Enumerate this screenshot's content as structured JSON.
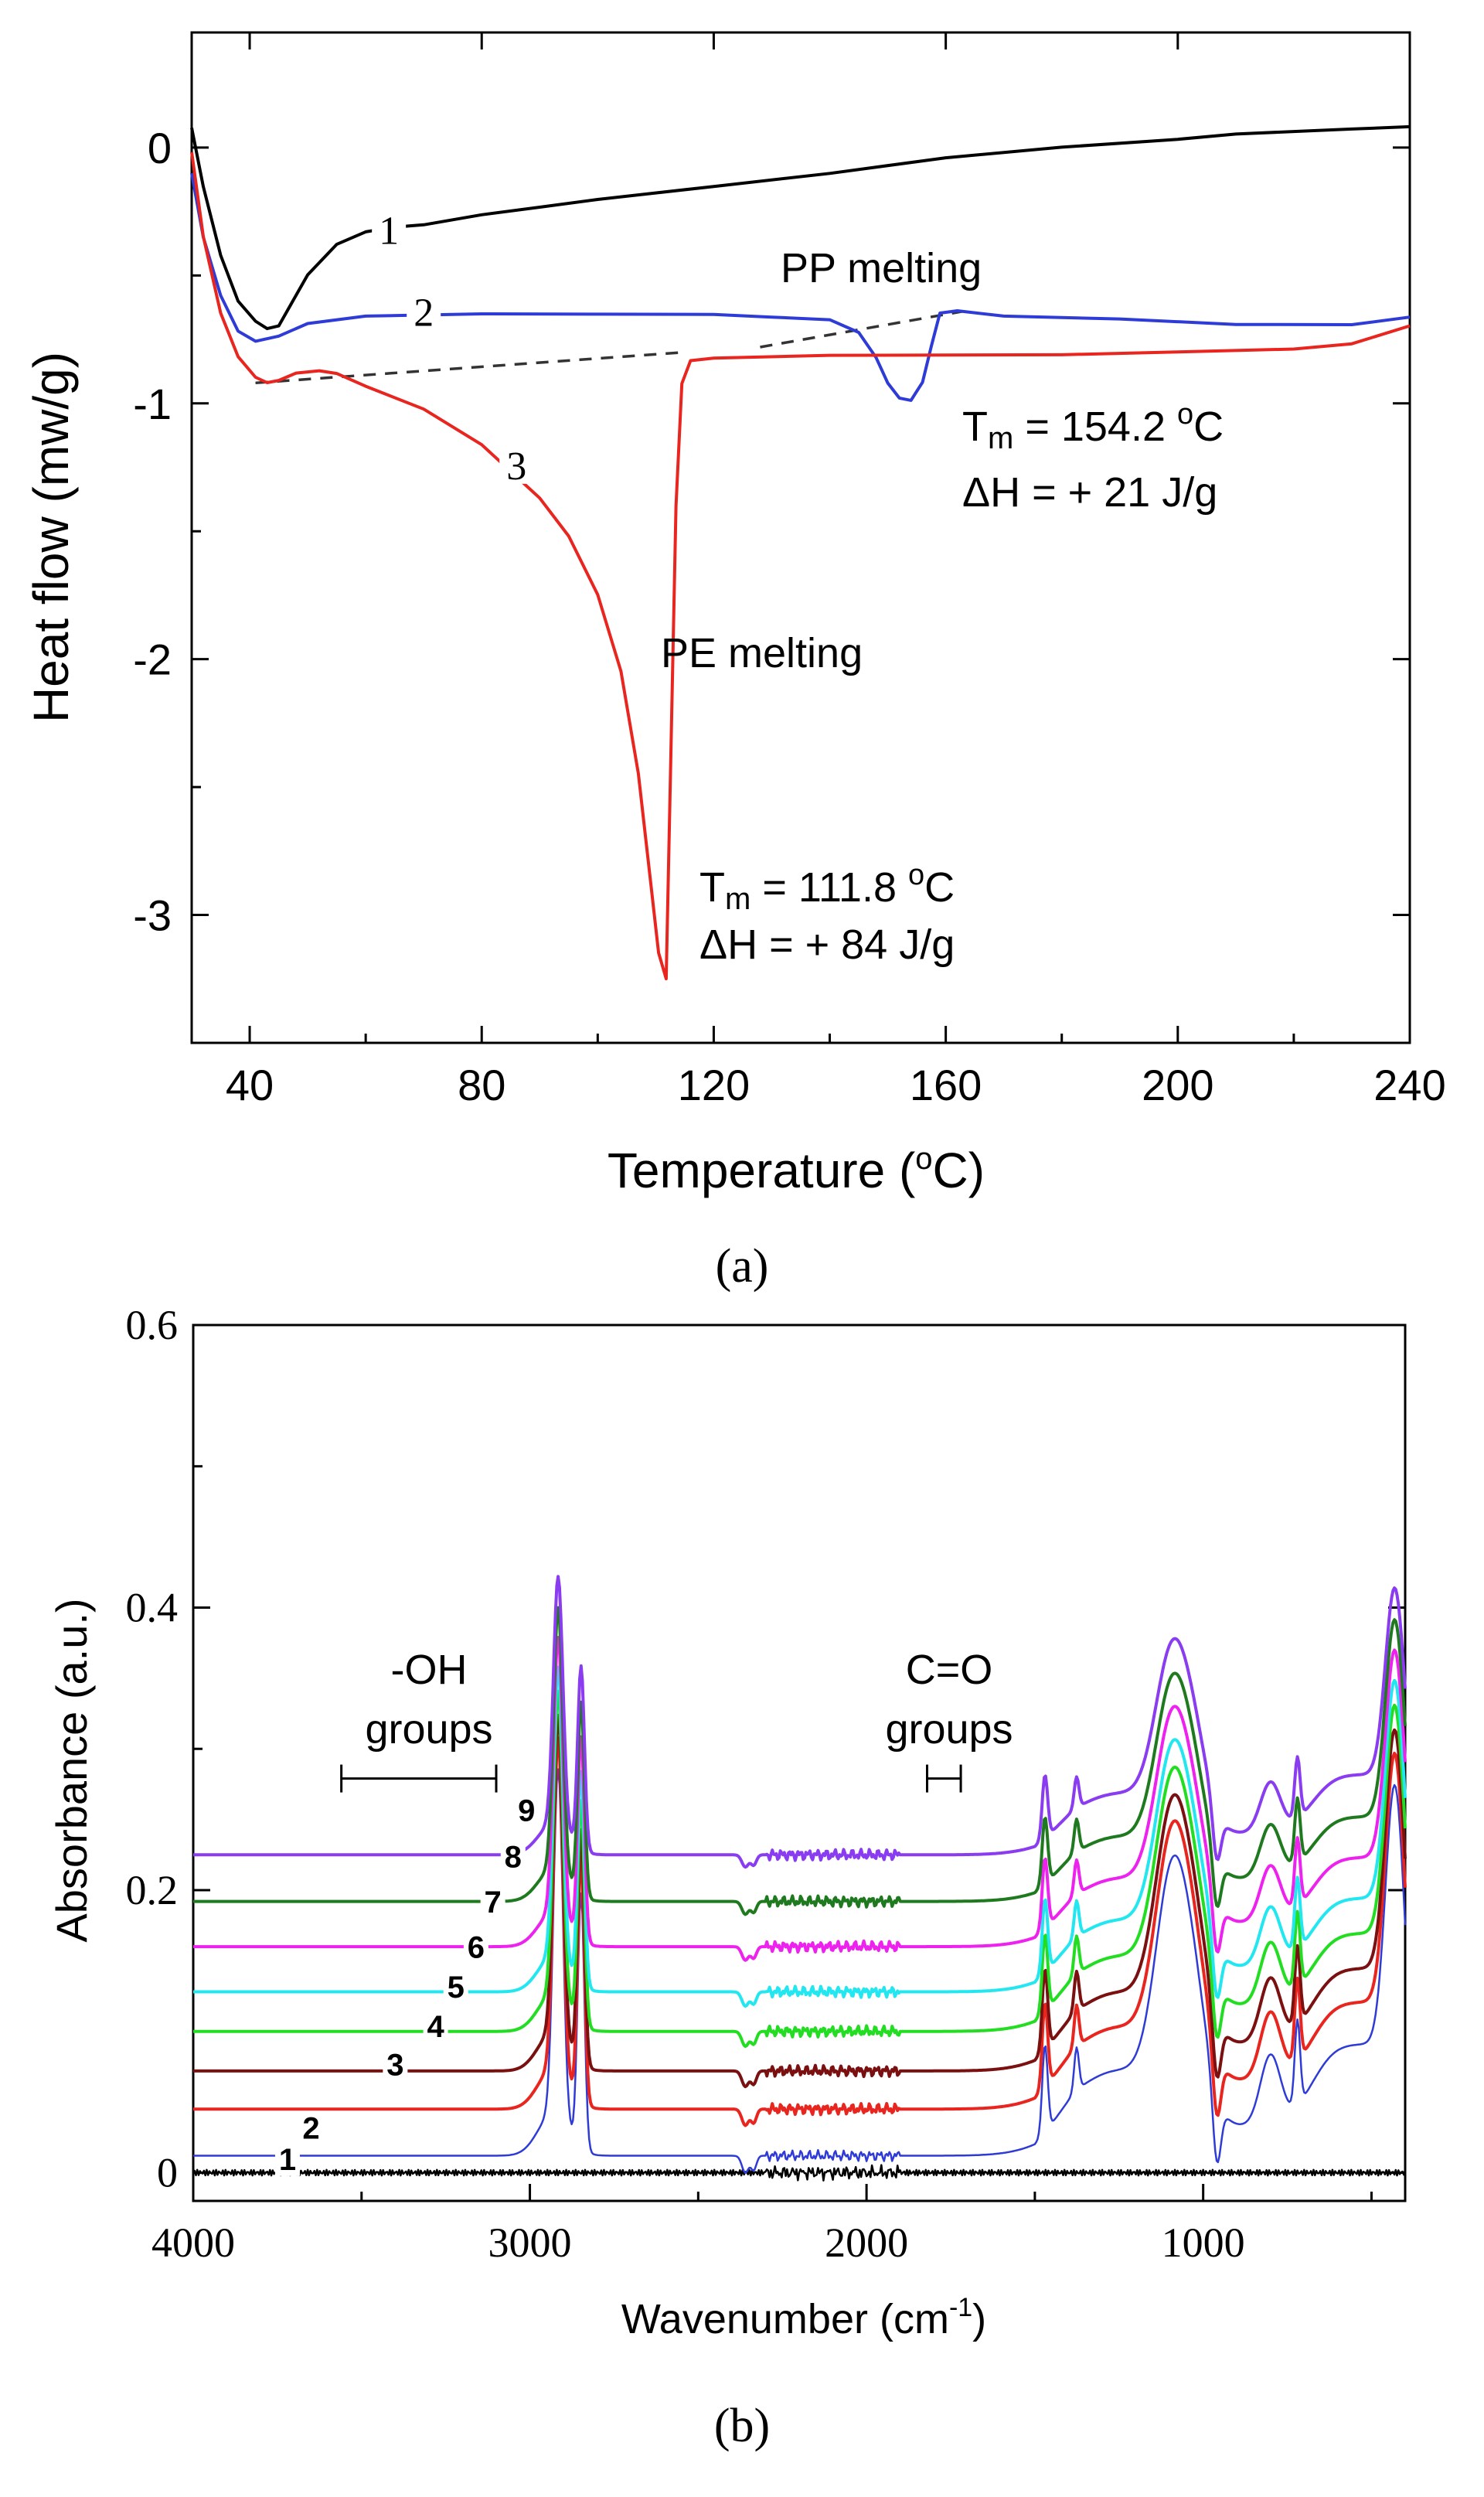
{
  "chart_data": [
    {
      "panel": "a",
      "type": "line",
      "panel_label": "(a)",
      "xlabel": "Temperature (oC)",
      "ylabel": "Heat flow (mw/g)",
      "xlim": [
        30,
        240
      ],
      "ylim": [
        -3.5,
        0.45
      ],
      "x_ticks": [
        40,
        80,
        120,
        160,
        200,
        240
      ],
      "y_ticks": [
        0,
        -1,
        -2,
        -3
      ],
      "series": [
        {
          "name": "1",
          "color": "#000000",
          "x": [
            30,
            32,
            35,
            38,
            41,
            43,
            45,
            47,
            50,
            55,
            60,
            65,
            70,
            80,
            90,
            100,
            120,
            140,
            160,
            180,
            200,
            210,
            220,
            230,
            240
          ],
          "y": [
            0.08,
            -0.15,
            -0.42,
            -0.6,
            -0.68,
            -0.71,
            -0.7,
            -0.62,
            -0.5,
            -0.38,
            -0.33,
            -0.31,
            -0.3,
            -0.26,
            -0.23,
            -0.2,
            -0.15,
            -0.1,
            -0.04,
            0.0,
            0.03,
            0.05,
            0.06,
            0.07,
            0.08
          ]
        },
        {
          "name": "2",
          "color": "#2e3bd6",
          "x": [
            30,
            32,
            35,
            38,
            41,
            45,
            50,
            60,
            80,
            100,
            120,
            130,
            140,
            145,
            148,
            150,
            152,
            154,
            156,
            157.5,
            159,
            162,
            170,
            190,
            210,
            230,
            240
          ],
          "y": [
            -0.1,
            -0.35,
            -0.58,
            -0.72,
            -0.76,
            -0.74,
            -0.69,
            -0.66,
            -0.65,
            -0.65,
            -0.65,
            -0.66,
            -0.67,
            -0.72,
            -0.82,
            -0.92,
            -0.98,
            -0.99,
            -0.92,
            -0.78,
            -0.65,
            -0.64,
            -0.66,
            -0.67,
            -0.69,
            -0.69,
            -0.66
          ]
        },
        {
          "name": "3",
          "color": "#e8251e",
          "x": [
            30,
            32,
            35,
            38,
            41,
            43,
            45,
            48,
            52,
            55,
            60,
            70,
            80,
            90,
            95,
            100,
            104,
            107,
            109,
            110.5,
            111.8,
            112.5,
            113.5,
            114.5,
            116,
            120,
            140,
            160,
            180,
            200,
            220,
            230,
            240
          ],
          "y": [
            -0.02,
            -0.35,
            -0.65,
            -0.82,
            -0.9,
            -0.92,
            -0.91,
            -0.88,
            -0.87,
            -0.88,
            -0.93,
            -1.02,
            -1.16,
            -1.37,
            -1.52,
            -1.75,
            -2.05,
            -2.45,
            -2.85,
            -3.15,
            -3.25,
            -2.5,
            -1.4,
            -0.92,
            -0.83,
            -0.82,
            -0.81,
            -0.81,
            -0.81,
            -0.8,
            -0.79,
            -0.77,
            -0.7
          ]
        }
      ],
      "baselines": [
        {
          "of": "PP",
          "x": [
            128,
            163
          ],
          "y": [
            -0.78,
            -0.64
          ]
        },
        {
          "of": "PE",
          "x": [
            41,
            115
          ],
          "y": [
            -0.92,
            -0.8
          ]
        }
      ],
      "series_labels": [
        {
          "text": "1",
          "x": 64,
          "y": -0.34
        },
        {
          "text": "2",
          "x": 70,
          "y": -0.66
        },
        {
          "text": "3",
          "x": 86,
          "y": -1.26
        }
      ],
      "annotations": {
        "pp_melting": "PP melting",
        "pe_melting": "PE melting",
        "pp_tm_prefix": "T",
        "pp_tm_sub": "m",
        "pp_tm_value": " = 154.2 ",
        "pp_tm_sup": "o",
        "pp_tm_unit": "C",
        "pp_dh": "ΔH = + 21 J/g",
        "pe_tm_prefix": "T",
        "pe_tm_sub": "m",
        "pe_tm_value": " = 111.8 ",
        "pe_tm_sup": "o",
        "pe_tm_unit": "C",
        "pe_dh": "ΔH = + 84 J/g"
      },
      "xlabel_parts": {
        "pre": "Temperature (",
        "sup": "o",
        "post": "C)"
      }
    },
    {
      "panel": "b",
      "type": "line",
      "panel_label": "(b)",
      "xlabel": "Wavenumber (cm-1)",
      "xlabel_parts": {
        "pre": "Wavenumber (cm",
        "sup": "-1",
        "post": ")"
      },
      "ylabel": "Absorbance (a.u.)",
      "xlim": [
        4000,
        400
      ],
      "ylim": [
        -0.02,
        0.6
      ],
      "x_ticks": [
        4000,
        3000,
        2000,
        1000
      ],
      "y_ticks": [
        "0",
        "0.2",
        "0.4",
        "0.6"
      ],
      "y_tick_values": [
        0,
        0.2,
        0.4,
        0.6
      ],
      "series": [
        {
          "name": "1",
          "color": "#000000",
          "offset": 0.0,
          "scale": 0.02
        },
        {
          "name": "2",
          "color": "#2e3bd6",
          "offset": 0.012,
          "scale": 1.0
        },
        {
          "name": "3",
          "color": "#e8251e",
          "offset": 0.045,
          "scale": 0.96
        },
        {
          "name": "4",
          "color": "#7a1010",
          "offset": 0.072,
          "scale": 0.92
        },
        {
          "name": "5",
          "color": "#22dd22",
          "offset": 0.1,
          "scale": 0.88
        },
        {
          "name": "6",
          "color": "#22e6f0",
          "offset": 0.128,
          "scale": 0.84
        },
        {
          "name": "7",
          "color": "#ee22ee",
          "offset": 0.16,
          "scale": 0.8
        },
        {
          "name": "8",
          "color": "#1f7a1f",
          "offset": 0.192,
          "scale": 0.76
        },
        {
          "name": "9",
          "color": "#8a3cf0",
          "offset": 0.225,
          "scale": 0.72
        }
      ],
      "peaks_cm-1": [
        2915,
        2848,
        1470,
        1375,
        1090,
        960,
        800,
        720,
        430
      ],
      "annotations": {
        "oh_line1": "-OH",
        "oh_line2": "groups",
        "co_line1": "C=O",
        "co_line2": "groups",
        "oh_range": [
          3560,
          3100
        ],
        "co_range": [
          1820,
          1720
        ]
      }
    }
  ]
}
